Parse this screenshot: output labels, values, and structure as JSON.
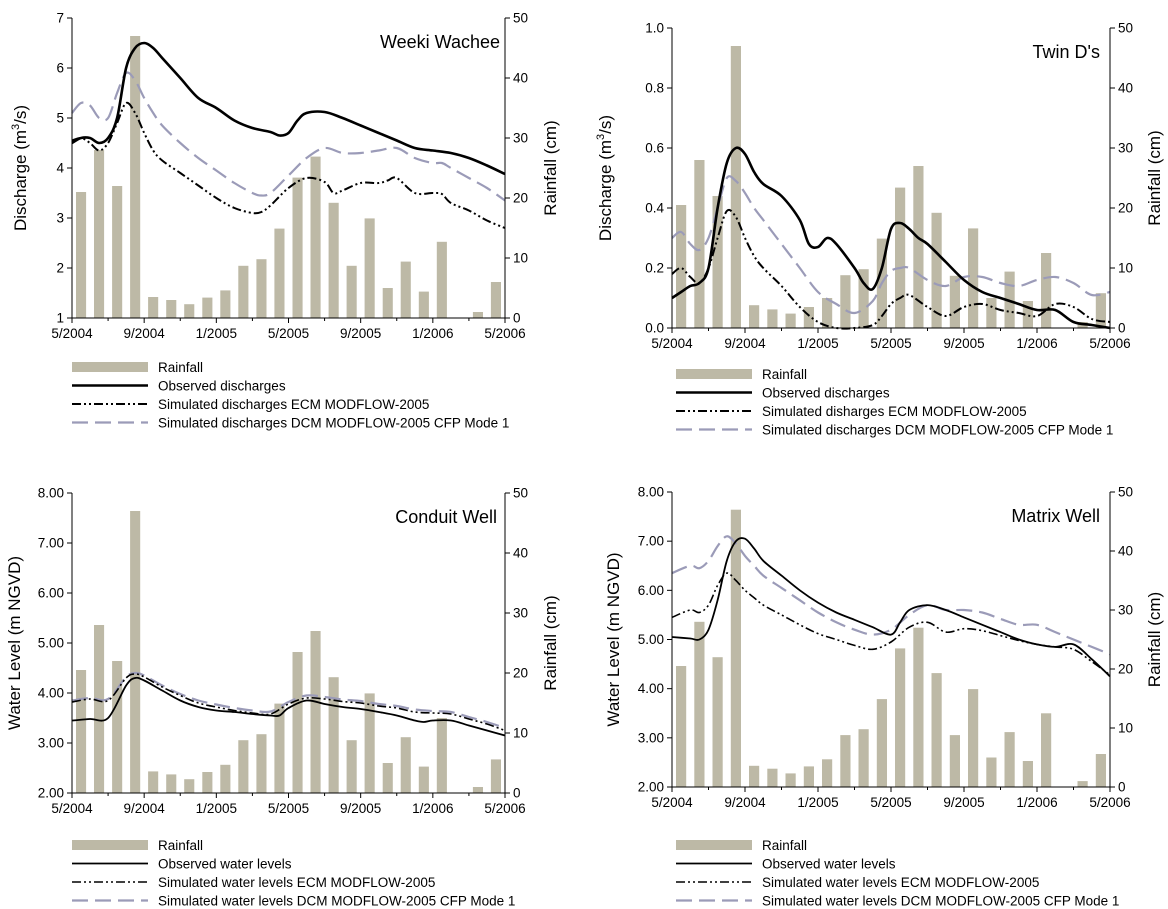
{
  "colors": {
    "rainfall_bar": "#bdb9a6",
    "observed": "#000000",
    "ecm": "#000000",
    "dcm": "#9b9bb8"
  },
  "chart_data": [
    {
      "type": "bar",
      "title": "Weeki Wachee",
      "ylabel_left": "Discharge (m3/s)",
      "ylabel_left_main": "Discharge (m",
      "ylabel_left_sup": "3",
      "ylabel_left_end": "/s)",
      "ylabel_right": "Rainfall (cm)",
      "x_ticks": [
        "5/2004",
        "9/2004",
        "1/2005",
        "5/2005",
        "9/2005",
        "1/2006",
        "5/2006"
      ],
      "x_range": [
        0,
        24
      ],
      "ylim_left": [
        1,
        7
      ],
      "y_ticks_left": [
        "1",
        "2",
        "3",
        "4",
        "5",
        "6",
        "7"
      ],
      "ylim_right": [
        0,
        50
      ],
      "y_ticks_right": [
        "0",
        "10",
        "20",
        "30",
        "40",
        "50"
      ],
      "rainfall": [
        21,
        28,
        22,
        47,
        3.5,
        3,
        2.3,
        3.4,
        4.6,
        8.7,
        9.8,
        14.9,
        23.4,
        26.9,
        19.2,
        8.7,
        16.6,
        5,
        9.4,
        4.4,
        12.7,
        0,
        1,
        6
      ],
      "series": [
        {
          "name": "Observed discharges",
          "key": "observed",
          "x": [
            0,
            0.5,
            1,
            1.5,
            2,
            2.5,
            3,
            3.5,
            4,
            4.5,
            5,
            6,
            7,
            8,
            9,
            10,
            11,
            11.5,
            12,
            12.5,
            13,
            14,
            15,
            16,
            17,
            18,
            19,
            20,
            21,
            22,
            23,
            24
          ],
          "values": [
            4.5,
            4.6,
            4.6,
            4.5,
            4.6,
            5.0,
            6.0,
            6.4,
            6.5,
            6.4,
            6.2,
            5.8,
            5.4,
            5.2,
            4.95,
            4.8,
            4.72,
            4.65,
            4.7,
            4.95,
            5.1,
            5.12,
            5.0,
            4.85,
            4.7,
            4.55,
            4.4,
            4.35,
            4.3,
            4.2,
            4.05,
            3.88
          ]
        },
        {
          "name": "Simulated discharges ECM MODFLOW-2005",
          "key": "ecm",
          "x": [
            0,
            0.5,
            1,
            1.5,
            2,
            2.5,
            3,
            3.5,
            4,
            4.5,
            5,
            6,
            7,
            8,
            9,
            10,
            10.5,
            11,
            12,
            13,
            14,
            14.5,
            15,
            16,
            17,
            17.5,
            18,
            19,
            20,
            20.5,
            21,
            22,
            23,
            24
          ],
          "values": [
            4.55,
            4.6,
            4.5,
            4.35,
            4.5,
            4.9,
            5.3,
            5.1,
            4.7,
            4.35,
            4.15,
            3.9,
            3.65,
            3.4,
            3.2,
            3.1,
            3.12,
            3.25,
            3.6,
            3.8,
            3.72,
            3.5,
            3.55,
            3.7,
            3.7,
            3.75,
            3.8,
            3.5,
            3.5,
            3.48,
            3.3,
            3.15,
            2.95,
            2.8
          ]
        },
        {
          "name": "Simulated discharges DCM MODFLOW-2005 CFP Mode 1",
          "key": "dcm",
          "x": [
            0,
            0.5,
            1,
            1.5,
            2,
            2.5,
            3,
            3.5,
            4,
            4.5,
            5,
            6,
            7,
            8,
            9,
            10,
            10.5,
            11,
            12,
            13,
            14,
            15,
            16,
            17,
            18,
            19,
            20,
            20.5,
            21,
            22,
            23,
            24
          ],
          "values": [
            5.1,
            5.3,
            5.25,
            5.0,
            5.0,
            5.5,
            5.9,
            5.75,
            5.4,
            5.1,
            4.85,
            4.5,
            4.2,
            3.95,
            3.7,
            3.5,
            3.45,
            3.5,
            3.85,
            4.2,
            4.4,
            4.3,
            4.3,
            4.35,
            4.4,
            4.2,
            4.1,
            4.1,
            4.0,
            3.8,
            3.6,
            3.35
          ]
        }
      ],
      "legend": {
        "rainfall": "Rainfall",
        "observed": "Observed discharges",
        "ecm": "Simulated discharges ECM MODFLOW-2005",
        "dcm": "Simulated discharges DCM MODFLOW-2005 CFP Mode 1"
      }
    },
    {
      "type": "bar",
      "title": "Twin D's",
      "ylabel_left": "Discharge (m3/s)",
      "ylabel_left_main": "Discharge (m",
      "ylabel_left_sup": "3",
      "ylabel_left_end": "/s)",
      "ylabel_right": "Rainfall (cm)",
      "x_ticks": [
        "5/2004",
        "9/2004",
        "1/2005",
        "5/2005",
        "9/2005",
        "1/2006",
        "5/2006"
      ],
      "x_range": [
        0,
        24
      ],
      "ylim_left": [
        0,
        1
      ],
      "y_ticks_left": [
        "0.0",
        "0.2",
        "0.4",
        "0.6",
        "0.8",
        "1.0"
      ],
      "ylim_right": [
        0,
        50
      ],
      "y_ticks_right": [
        "0",
        "10",
        "20",
        "30",
        "40",
        "50"
      ],
      "rainfall": [
        20.5,
        28,
        22,
        47,
        3.8,
        3.1,
        2.4,
        3.5,
        5,
        8.8,
        9.8,
        14.9,
        23.4,
        27,
        19.2,
        8.7,
        16.6,
        5,
        9.4,
        4.5,
        12.5,
        0,
        1,
        5.8
      ],
      "series": [
        {
          "name": "Observed discharges",
          "key": "observed",
          "x": [
            0,
            0.5,
            1,
            1.5,
            2,
            2.5,
            3,
            3.5,
            4,
            4.5,
            5,
            6,
            7,
            7.5,
            8,
            8.5,
            9,
            10,
            10.5,
            11,
            11.5,
            12,
            12.5,
            13,
            13.5,
            14,
            15,
            16,
            17,
            18,
            19,
            20,
            21,
            22,
            23,
            24
          ],
          "values": [
            0.1,
            0.12,
            0.14,
            0.15,
            0.2,
            0.4,
            0.55,
            0.6,
            0.58,
            0.52,
            0.48,
            0.44,
            0.36,
            0.28,
            0.27,
            0.3,
            0.28,
            0.2,
            0.15,
            0.13,
            0.2,
            0.33,
            0.35,
            0.33,
            0.3,
            0.28,
            0.22,
            0.16,
            0.12,
            0.1,
            0.08,
            0.06,
            0.06,
            0.02,
            0.01,
            0.0
          ]
        },
        {
          "name": "Simulated disharges ECM MODFLOW-2005",
          "key": "ecm",
          "x": [
            0,
            0.5,
            1,
            1.5,
            2,
            2.5,
            3,
            3.5,
            4,
            4.5,
            5,
            6,
            7,
            8,
            9,
            10,
            11,
            11.5,
            12,
            12.5,
            13,
            14,
            15,
            16,
            17,
            18,
            19,
            20,
            21,
            22,
            23,
            24
          ],
          "values": [
            0.18,
            0.2,
            0.17,
            0.15,
            0.2,
            0.3,
            0.39,
            0.37,
            0.3,
            0.24,
            0.2,
            0.14,
            0.07,
            0.02,
            0.0,
            0.0,
            0.01,
            0.04,
            0.08,
            0.1,
            0.11,
            0.07,
            0.04,
            0.07,
            0.08,
            0.06,
            0.05,
            0.04,
            0.08,
            0.07,
            0.03,
            0.02
          ]
        },
        {
          "name": "Simulated discharges DCM MODFLOW-2005 CFP Mode 1",
          "key": "dcm",
          "x": [
            0,
            0.5,
            1,
            1.5,
            2,
            2.5,
            3,
            3.5,
            4,
            4.5,
            5,
            6,
            7,
            8,
            9,
            10,
            11,
            11.5,
            12,
            12.5,
            13,
            14,
            15,
            16,
            17,
            18,
            19,
            20,
            21,
            22,
            23,
            24
          ],
          "values": [
            0.3,
            0.32,
            0.28,
            0.26,
            0.3,
            0.4,
            0.5,
            0.49,
            0.45,
            0.4,
            0.36,
            0.28,
            0.2,
            0.12,
            0.08,
            0.05,
            0.09,
            0.15,
            0.19,
            0.2,
            0.2,
            0.16,
            0.14,
            0.17,
            0.17,
            0.15,
            0.14,
            0.16,
            0.17,
            0.15,
            0.11,
            0.12
          ]
        }
      ],
      "legend": {
        "rainfall": "Rainfall",
        "observed": "Observed discharges",
        "ecm": "Simulated disharges ECM MODFLOW-2005",
        "dcm": "Simulated discharges DCM MODFLOW-2005 CFP Mode 1"
      }
    },
    {
      "type": "bar",
      "title": "Conduit Well",
      "ylabel_left": "Water Level (m NGVD)",
      "ylabel_right": "Rainfall (cm)",
      "x_ticks": [
        "5/2004",
        "9/2004",
        "1/2005",
        "5/2005",
        "9/2005",
        "1/2006",
        "5/2006"
      ],
      "x_range": [
        0,
        24
      ],
      "ylim_left": [
        2,
        8
      ],
      "y_ticks_left": [
        "2.00",
        "3.00",
        "4.00",
        "5.00",
        "6.00",
        "7.00",
        "8.00"
      ],
      "ylim_right": [
        0,
        50
      ],
      "y_ticks_right": [
        "0",
        "10",
        "20",
        "30",
        "40",
        "50"
      ],
      "rainfall": [
        20.5,
        28,
        22,
        47,
        3.6,
        3.1,
        2.3,
        3.5,
        4.7,
        8.8,
        9.8,
        14.9,
        23.5,
        27,
        19.3,
        8.8,
        16.6,
        5,
        9.3,
        4.4,
        12.5,
        0,
        1,
        5.6
      ],
      "series": [
        {
          "name": "Observed water levels",
          "key": "observed",
          "x": [
            0,
            1,
            2,
            3,
            3.5,
            4,
            5,
            6,
            7,
            8,
            9,
            10,
            11,
            11.5,
            12,
            13,
            14,
            15,
            16,
            17,
            18,
            19,
            19.5,
            20,
            21,
            22,
            23,
            24
          ],
          "values": [
            3.45,
            3.48,
            3.5,
            4.15,
            4.3,
            4.25,
            4.05,
            3.85,
            3.72,
            3.65,
            3.62,
            3.58,
            3.55,
            3.55,
            3.7,
            3.85,
            3.78,
            3.72,
            3.68,
            3.62,
            3.55,
            3.45,
            3.42,
            3.45,
            3.45,
            3.35,
            3.25,
            3.15
          ]
        },
        {
          "name": "Simulated water levels ECM MODFLOW-2005",
          "key": "ecm",
          "x": [
            0,
            1,
            2,
            3,
            3.5,
            4,
            5,
            6,
            7,
            8,
            9,
            10,
            11,
            12,
            13,
            14,
            15,
            16,
            17,
            18,
            19,
            20,
            21,
            22,
            23,
            24
          ],
          "values": [
            3.82,
            3.88,
            3.85,
            4.3,
            4.38,
            4.32,
            4.12,
            3.95,
            3.8,
            3.72,
            3.65,
            3.6,
            3.58,
            3.78,
            3.9,
            3.88,
            3.83,
            3.8,
            3.74,
            3.7,
            3.62,
            3.6,
            3.58,
            3.48,
            3.38,
            3.25
          ]
        },
        {
          "name": "Simulated water levels DCM MODFLOW-2005 CFP Mode 1",
          "key": "dcm",
          "x": [
            0,
            1,
            2,
            3,
            3.5,
            4,
            5,
            6,
            7,
            8,
            9,
            10,
            11,
            12,
            13,
            14,
            15,
            16,
            17,
            18,
            19,
            20,
            21,
            22,
            23,
            24
          ],
          "values": [
            3.85,
            3.9,
            3.88,
            4.32,
            4.4,
            4.35,
            4.15,
            3.98,
            3.85,
            3.77,
            3.7,
            3.65,
            3.63,
            3.82,
            3.95,
            3.92,
            3.87,
            3.84,
            3.78,
            3.74,
            3.67,
            3.64,
            3.62,
            3.52,
            3.42,
            3.3
          ]
        }
      ],
      "legend": {
        "rainfall": "Rainfall",
        "observed": "Observed water levels",
        "ecm": "Simulated water levels ECM MODFLOW-2005",
        "dcm": "Simulated water levels DCM MODFLOW-2005 CFP Mode 1"
      }
    },
    {
      "type": "bar",
      "title": "Matrix Well",
      "ylabel_left": "Water Level (m NGVD)",
      "ylabel_right": "Rainfall (cm)",
      "x_ticks": [
        "5/2004",
        "9/2004",
        "1/2005",
        "5/2005",
        "9/2005",
        "1/2006",
        "5/2006"
      ],
      "x_range": [
        0,
        24
      ],
      "ylim_left": [
        2,
        8
      ],
      "y_ticks_left": [
        "2.00",
        "3.00",
        "4.00",
        "5.00",
        "6.00",
        "7.00",
        "8.00"
      ],
      "ylim_right": [
        0,
        50
      ],
      "y_ticks_right": [
        "0",
        "10",
        "20",
        "30",
        "40",
        "50"
      ],
      "rainfall": [
        20.5,
        28,
        22,
        47,
        3.6,
        3.1,
        2.3,
        3.5,
        4.7,
        8.8,
        9.8,
        14.9,
        23.5,
        27,
        19.3,
        8.8,
        16.6,
        5,
        9.3,
        4.4,
        12.5,
        0,
        1,
        5.6
      ],
      "series": [
        {
          "name": "Observed water levels",
          "key": "observed",
          "x": [
            0,
            1,
            1.5,
            2,
            2.5,
            3,
            3.5,
            4,
            4.5,
            5,
            6,
            7,
            8,
            9,
            10,
            11,
            12,
            12.5,
            13,
            14,
            15,
            16,
            17,
            18,
            19,
            20,
            21,
            22,
            23,
            24
          ],
          "values": [
            5.05,
            5.02,
            5.0,
            5.2,
            5.8,
            6.6,
            7.0,
            7.05,
            6.85,
            6.6,
            6.3,
            6.0,
            5.75,
            5.55,
            5.4,
            5.25,
            5.1,
            5.35,
            5.6,
            5.7,
            5.6,
            5.45,
            5.3,
            5.15,
            5.0,
            4.9,
            4.85,
            4.9,
            4.6,
            4.25
          ]
        },
        {
          "name": "Simulated water levels ECM MODFLOW-2005",
          "key": "ecm",
          "x": [
            0,
            1,
            1.5,
            2,
            2.5,
            3,
            3.5,
            4,
            4.5,
            5,
            6,
            7,
            8,
            9,
            10,
            11,
            12,
            13,
            14,
            15,
            16,
            17,
            18,
            19,
            20,
            21,
            22,
            23,
            24
          ],
          "values": [
            5.45,
            5.6,
            5.55,
            5.7,
            6.1,
            6.35,
            6.2,
            6.0,
            5.85,
            5.7,
            5.5,
            5.3,
            5.12,
            5.0,
            4.88,
            4.8,
            4.95,
            5.25,
            5.35,
            5.15,
            5.22,
            5.18,
            5.08,
            4.98,
            4.9,
            4.85,
            4.8,
            4.55,
            4.28
          ]
        },
        {
          "name": "Simulated water levels DCM MODFLOW-2005 CFP Mode 1",
          "key": "dcm",
          "x": [
            0,
            1,
            1.5,
            2,
            2.5,
            3,
            3.5,
            4,
            4.5,
            5,
            6,
            7,
            8,
            9,
            10,
            11,
            12,
            13,
            14,
            15,
            16,
            17,
            18,
            19,
            20,
            21,
            22,
            23,
            24
          ],
          "values": [
            6.35,
            6.5,
            6.45,
            6.6,
            6.9,
            7.1,
            6.95,
            6.7,
            6.5,
            6.3,
            6.05,
            5.8,
            5.55,
            5.35,
            5.2,
            5.1,
            5.2,
            5.5,
            5.7,
            5.6,
            5.6,
            5.55,
            5.42,
            5.3,
            5.3,
            5.15,
            5.0,
            4.85,
            4.7
          ]
        }
      ],
      "legend": {
        "rainfall": "Rainfall",
        "observed": "Observed water levels",
        "ecm": "Simulated water levels ECM MODFLOW-2005",
        "dcm": "Simulated water levels DCM MODFLOW-2005 CFP Mode 1"
      }
    }
  ]
}
